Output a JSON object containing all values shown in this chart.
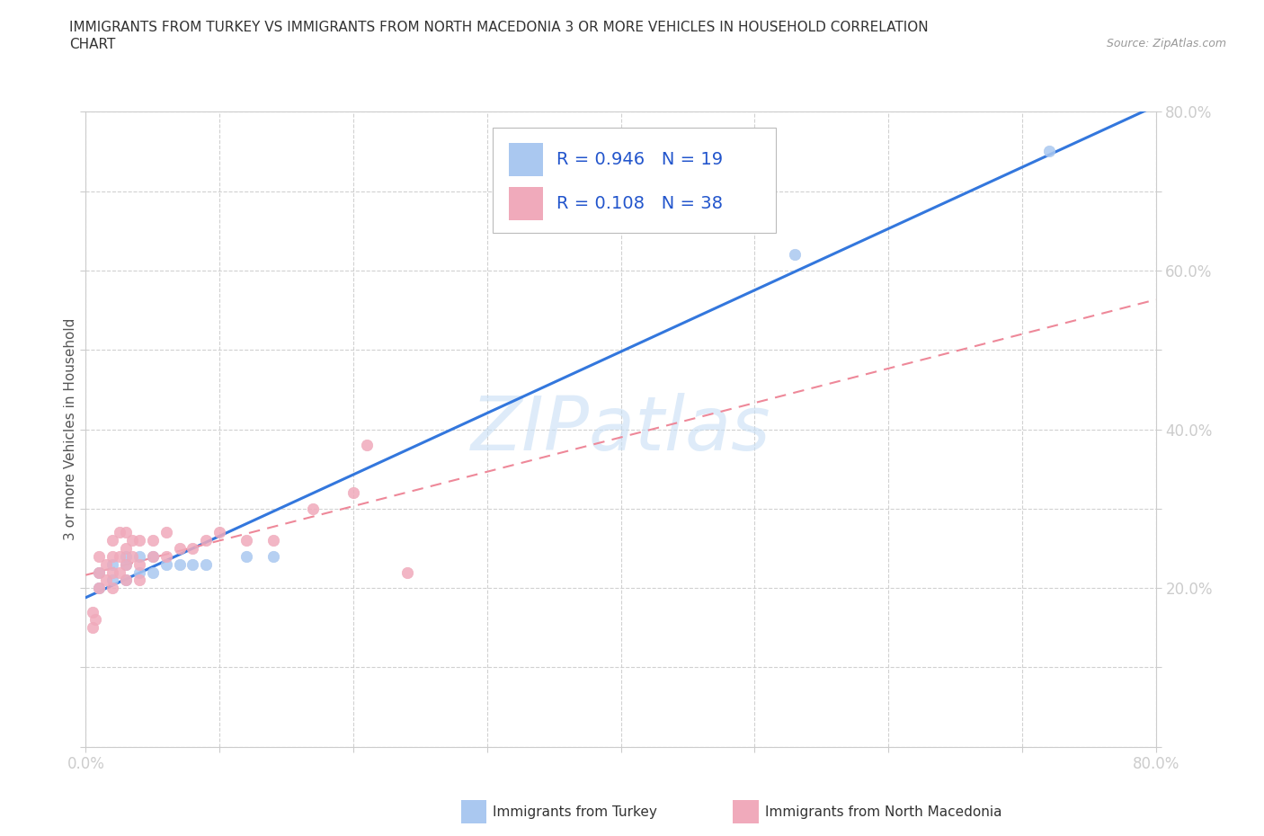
{
  "title_line1": "IMMIGRANTS FROM TURKEY VS IMMIGRANTS FROM NORTH MACEDONIA 3 OR MORE VEHICLES IN HOUSEHOLD CORRELATION",
  "title_line2": "CHART",
  "source_text": "Source: ZipAtlas.com",
  "ylabel": "3 or more Vehicles in Household",
  "xlim": [
    0.0,
    0.8
  ],
  "ylim": [
    0.0,
    0.8
  ],
  "turkey_color": "#aac8f0",
  "macedonia_color": "#f0aabb",
  "turkey_line_color": "#3377dd",
  "macedonia_line_color": "#ee8899",
  "R_turkey": 0.946,
  "N_turkey": 19,
  "R_macedonia": 0.108,
  "N_macedonia": 38,
  "legend_text_color": "#2255cc",
  "watermark_color": "#c8dff5",
  "turkey_scatter_x": [
    0.01,
    0.01,
    0.02,
    0.02,
    0.03,
    0.03,
    0.03,
    0.04,
    0.04,
    0.05,
    0.05,
    0.06,
    0.07,
    0.08,
    0.09,
    0.12,
    0.14,
    0.53,
    0.72
  ],
  "turkey_scatter_y": [
    0.2,
    0.22,
    0.21,
    0.23,
    0.21,
    0.23,
    0.24,
    0.22,
    0.24,
    0.22,
    0.24,
    0.23,
    0.23,
    0.23,
    0.23,
    0.24,
    0.24,
    0.62,
    0.75
  ],
  "macedonia_scatter_x": [
    0.005,
    0.005,
    0.007,
    0.01,
    0.01,
    0.01,
    0.015,
    0.015,
    0.02,
    0.02,
    0.02,
    0.02,
    0.025,
    0.025,
    0.025,
    0.03,
    0.03,
    0.03,
    0.03,
    0.035,
    0.035,
    0.04,
    0.04,
    0.04,
    0.05,
    0.05,
    0.06,
    0.06,
    0.07,
    0.08,
    0.09,
    0.1,
    0.12,
    0.14,
    0.17,
    0.2,
    0.21,
    0.24
  ],
  "macedonia_scatter_y": [
    0.15,
    0.17,
    0.16,
    0.2,
    0.22,
    0.24,
    0.21,
    0.23,
    0.2,
    0.22,
    0.24,
    0.26,
    0.22,
    0.24,
    0.27,
    0.21,
    0.23,
    0.25,
    0.27,
    0.24,
    0.26,
    0.21,
    0.23,
    0.26,
    0.24,
    0.26,
    0.24,
    0.27,
    0.25,
    0.25,
    0.26,
    0.27,
    0.26,
    0.26,
    0.3,
    0.32,
    0.38,
    0.22
  ],
  "xtick_positions": [
    0.0,
    0.1,
    0.2,
    0.3,
    0.4,
    0.5,
    0.6,
    0.7,
    0.8
  ],
  "ytick_positions": [
    0.0,
    0.1,
    0.2,
    0.3,
    0.4,
    0.5,
    0.6,
    0.7,
    0.8
  ],
  "xtick_show": [
    0,
    8
  ],
  "ytick_show": [
    2,
    4,
    6,
    8
  ],
  "tick_color": "#4488cc",
  "grid_color": "#cccccc",
  "spine_color": "#cccccc",
  "title_fontsize": 11,
  "legend_fontsize": 14
}
